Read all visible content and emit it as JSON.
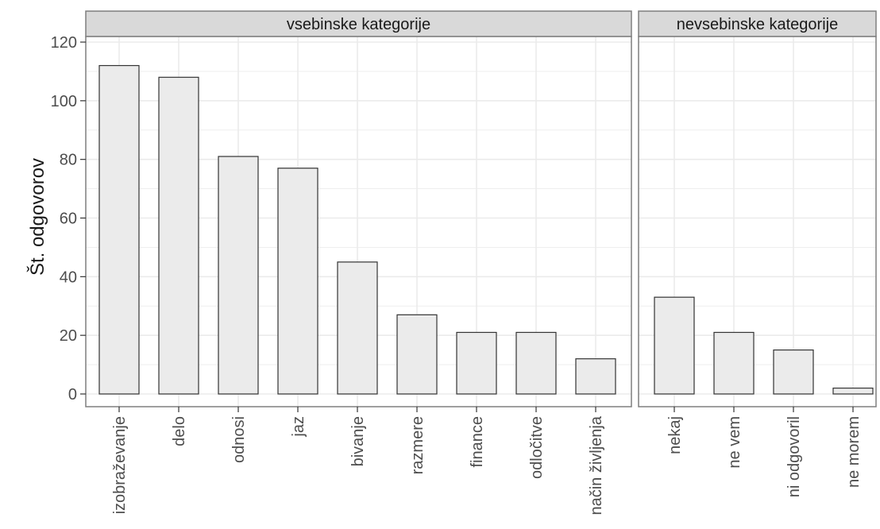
{
  "chart_data": {
    "type": "bar",
    "ylabel": "Št. odgovorov",
    "xlabel": "",
    "ylim": [
      0,
      120
    ],
    "yticks": [
      0,
      20,
      40,
      60,
      80,
      100,
      120
    ],
    "grid": true,
    "bar_fill": "#ebebeb",
    "bar_stroke": "#333333",
    "panel_border": "#7f7f7f",
    "strip_fill": "#d9d9d9",
    "grid_color": "#ebebeb",
    "panels": [
      {
        "strip_label": "vsebinske kategorije",
        "categories": [
          "izobraževanje",
          "delo",
          "odnosi",
          "jaz",
          "bivanje",
          "razmere",
          "finance",
          "odločitve",
          "način življenja"
        ],
        "values": [
          112,
          108,
          81,
          77,
          45,
          27,
          21,
          21,
          12
        ]
      },
      {
        "strip_label": "nevsebinske kategorije",
        "categories": [
          "nekaj",
          "ne vem",
          "ni odgovoril",
          "ne morem"
        ],
        "values": [
          33,
          21,
          15,
          2
        ]
      }
    ]
  }
}
